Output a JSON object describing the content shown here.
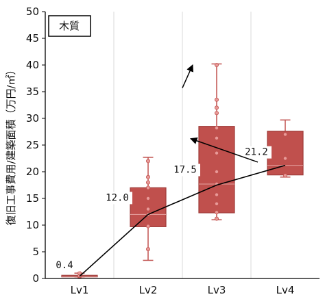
{
  "chart_data": {
    "type": "box",
    "ylabel": "復旧工事費用/建築面積（万円/㎡）",
    "ylim": [
      0,
      50
    ],
    "yticks": [
      0,
      5,
      10,
      15,
      20,
      25,
      30,
      35,
      40,
      45,
      50
    ],
    "grid": "vertical",
    "legend_label": "木質",
    "legend_placement": "top-left",
    "categories": [
      "Lv1",
      "Lv2",
      "Lv3",
      "Lv4"
    ],
    "box_color": "#c0504d",
    "box_edge_color": "#9e3b38",
    "boxes": [
      {
        "category": "Lv1",
        "min": 0.3,
        "q1": 0.3,
        "median": 0.4,
        "q3": 0.6,
        "max": 1.0,
        "points": [
          0.3,
          0.4,
          0.5,
          1.0
        ]
      },
      {
        "category": "Lv2",
        "min": 3.4,
        "q1": 9.7,
        "median": 12.0,
        "q3": 17.0,
        "max": 22.7,
        "points": [
          5.5,
          9.8,
          12.0,
          13.0,
          15.0,
          17.0,
          18.0,
          19.0,
          22.0
        ]
      },
      {
        "category": "Lv3",
        "min": 11.0,
        "q1": 12.3,
        "median": 17.7,
        "q3": 28.5,
        "max": 40.2,
        "points": [
          11.2,
          12.4,
          14.0,
          15.7,
          17.7,
          20.0,
          23.5,
          26.3,
          28.2,
          31.0,
          32.0,
          33.5,
          40.0
        ]
      },
      {
        "category": "Lv4",
        "min": 19.0,
        "q1": 19.4,
        "median": 21.2,
        "q3": 27.6,
        "max": 29.7,
        "points": [
          19.3,
          22.5,
          27.0
        ]
      }
    ],
    "mean_line": {
      "values": [
        0.4,
        12.0,
        17.5,
        21.2
      ],
      "labels": [
        "0.4",
        "12.0",
        "17.5",
        "21.2"
      ]
    },
    "annotations": [
      {
        "type": "arrow",
        "from_category": 2,
        "from_value": 35.7,
        "to_category": 2.15,
        "to_value": 40.0
      },
      {
        "type": "arrow",
        "from_category": 3.1,
        "from_value": 21.8,
        "to_category": 2.12,
        "to_value": 26.2
      }
    ]
  }
}
